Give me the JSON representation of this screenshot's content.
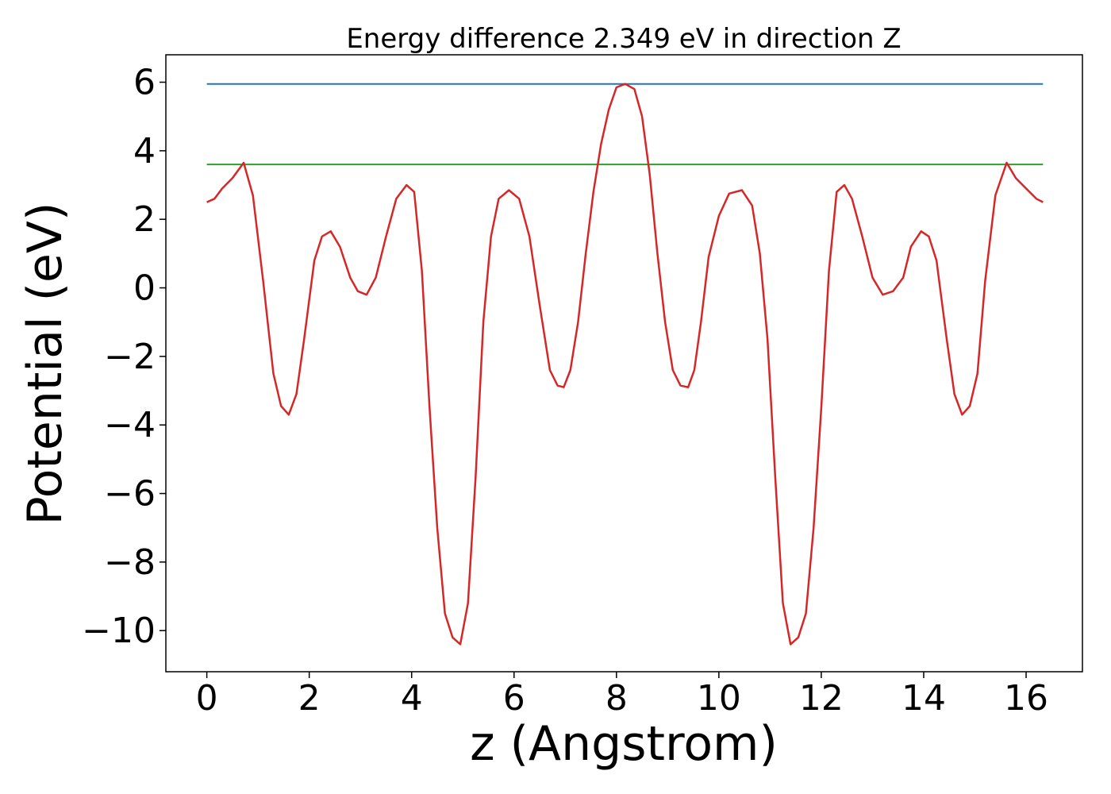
{
  "chart_data": {
    "type": "line",
    "title": "Energy difference 2.349 eV in direction Z",
    "xlabel": "z (Angstrom)",
    "ylabel": "Potential (eV)",
    "xlim": [
      -0.8,
      17.1
    ],
    "ylim": [
      -11.2,
      6.8
    ],
    "xticks": [
      0,
      2,
      4,
      6,
      8,
      10,
      12,
      14,
      16
    ],
    "yticks": [
      6,
      4,
      2,
      0,
      -2,
      -4,
      -6,
      -8,
      -10
    ],
    "xtick_labels": [
      "0",
      "2",
      "4",
      "6",
      "8",
      "10",
      "12",
      "14",
      "16"
    ],
    "ytick_labels": [
      "6",
      "4",
      "2",
      "0",
      "−2",
      "−4",
      "−6",
      "−8",
      "−10"
    ],
    "grid": false,
    "series": [
      {
        "color": "#1f77b4",
        "x": [
          0,
          16.33
        ],
        "y": [
          5.95,
          5.95
        ]
      },
      {
        "color": "#2ca02c",
        "x": [
          0,
          16.33
        ],
        "y": [
          3.6,
          3.6
        ]
      },
      {
        "color": "#d62728",
        "x": [
          0,
          0.15,
          0.3,
          0.5,
          0.72,
          0.9,
          1.1,
          1.3,
          1.45,
          1.6,
          1.75,
          1.9,
          2.1,
          2.25,
          2.42,
          2.6,
          2.8,
          2.95,
          3.12,
          3.3,
          3.5,
          3.7,
          3.9,
          4.05,
          4.2,
          4.35,
          4.5,
          4.65,
          4.8,
          4.95,
          5.1,
          5.25,
          5.4,
          5.55,
          5.7,
          5.9,
          6.1,
          6.3,
          6.5,
          6.7,
          6.85,
          6.97,
          7.1,
          7.25,
          7.4,
          7.55,
          7.7,
          7.85,
          8.0,
          8.17,
          8.35,
          8.5,
          8.65,
          8.8,
          8.95,
          9.1,
          9.25,
          9.4,
          9.52,
          9.65,
          9.8,
          10.0,
          10.2,
          10.45,
          10.65,
          10.8,
          10.95,
          11.1,
          11.25,
          11.4,
          11.55,
          11.7,
          11.85,
          12.0,
          12.15,
          12.3,
          12.45,
          12.6,
          12.8,
          13.0,
          13.2,
          13.4,
          13.6,
          13.75,
          13.95,
          14.1,
          14.25,
          14.45,
          14.6,
          14.75,
          14.9,
          15.05,
          15.2,
          15.4,
          15.62,
          15.8,
          16.0,
          16.2,
          16.33
        ],
        "y": [
          2.5,
          2.6,
          2.9,
          3.2,
          3.65,
          2.7,
          0.2,
          -2.5,
          -3.45,
          -3.7,
          -3.1,
          -1.5,
          0.8,
          1.5,
          1.65,
          1.2,
          0.3,
          -0.1,
          -0.2,
          0.3,
          1.5,
          2.6,
          3.0,
          2.8,
          0.5,
          -3.5,
          -7.0,
          -9.5,
          -10.2,
          -10.4,
          -9.2,
          -5.5,
          -1.0,
          1.5,
          2.6,
          2.85,
          2.6,
          1.5,
          -0.5,
          -2.4,
          -2.85,
          -2.9,
          -2.4,
          -1.0,
          1.0,
          2.8,
          4.2,
          5.2,
          5.85,
          5.95,
          5.8,
          5.0,
          3.3,
          1.0,
          -1.0,
          -2.4,
          -2.85,
          -2.9,
          -2.4,
          -1.0,
          0.9,
          2.1,
          2.75,
          2.85,
          2.4,
          1.0,
          -1.5,
          -5.5,
          -9.2,
          -10.4,
          -10.2,
          -9.5,
          -7.0,
          -3.5,
          0.5,
          2.8,
          3.0,
          2.6,
          1.5,
          0.3,
          -0.2,
          -0.1,
          0.3,
          1.2,
          1.65,
          1.5,
          0.8,
          -1.5,
          -3.1,
          -3.7,
          -3.45,
          -2.5,
          0.2,
          2.7,
          3.65,
          3.2,
          2.9,
          2.6,
          2.5
        ]
      }
    ]
  }
}
